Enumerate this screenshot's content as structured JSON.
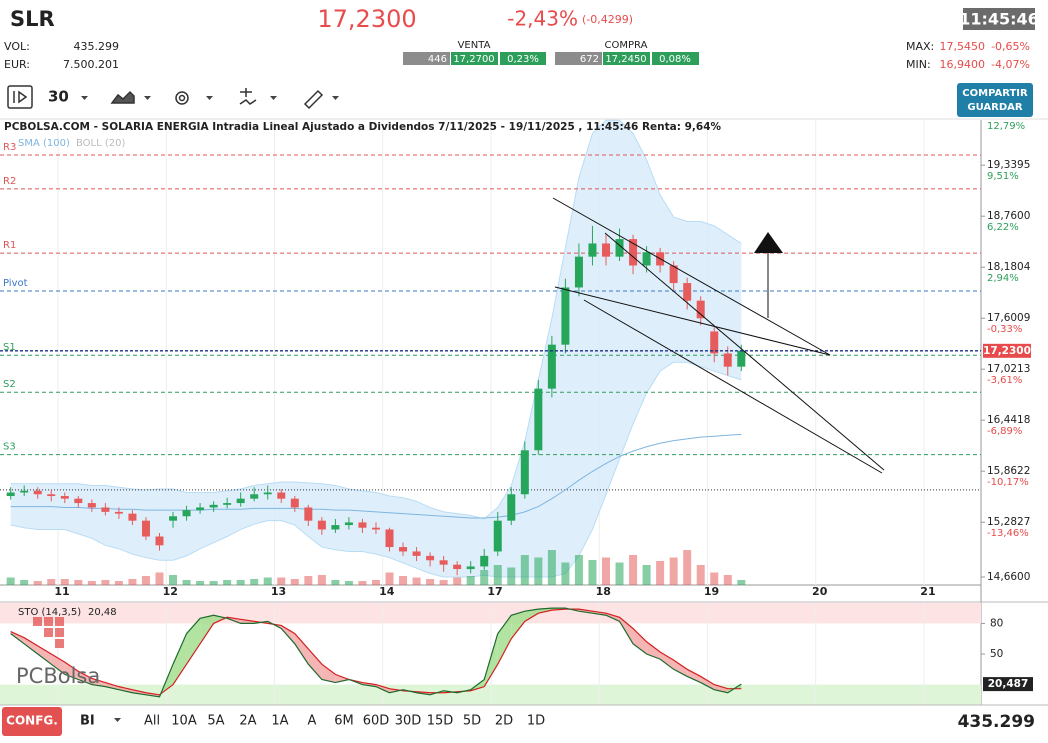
{
  "header": {
    "ticker": "SLR",
    "price": "17,2300",
    "change_pct": "-2,43%",
    "change_abs": "(-0,4299)",
    "time": "11:45:46",
    "vol_label": "VOL:",
    "vol": "435.299",
    "eur_label": "EUR:",
    "eur": "7.500.201",
    "venta": {
      "label": "VENTA",
      "qty": "446",
      "price": "17,2700",
      "pct": "0,23%"
    },
    "compra": {
      "label": "COMPRA",
      "qty": "672",
      "price": "17,2450",
      "pct": "0,08%"
    },
    "max_label": "MAX:",
    "max": "17,5450",
    "max_pct": "-0,65%",
    "min_label": "MIN:",
    "min": "16,9400",
    "min_pct": "-4,07%"
  },
  "toolbar": {
    "interval": "30",
    "share": "COMPARTIR",
    "save": "GUARDAR"
  },
  "chart_data": {
    "type": "candlestick",
    "title": "PCBOLSA.COM - SOLARIA ENERGIA Intradia Lineal Ajustado a Dividendos 7/11/2025 - 19/11/2025 , 11:45:46 Renta: 9,64%",
    "indicators": [
      "SMA (100)",
      "BOLL (20)"
    ],
    "colors": {
      "up": "#26a65b",
      "down": "#e65c5c",
      "sma": "#7fb5e0",
      "band": "#d6ebfa",
      "last": "#1f2f8a"
    },
    "x": [
      -0.4375,
      -0.3125,
      -0.1875,
      -0.0625,
      0.0625,
      0.1875,
      0.3125,
      0.4375,
      0.5625,
      0.6875,
      0.8125,
      0.9375,
      1.0625,
      1.1875,
      1.3125,
      1.4375,
      1.5625,
      1.6875,
      1.8125,
      1.9375,
      2.0625,
      2.1875,
      2.3125,
      2.4375,
      2.5625,
      2.6875,
      2.8125,
      2.9375,
      3.0625,
      3.1875,
      3.3125,
      3.4375,
      3.5625,
      3.6875,
      3.8125,
      3.9375,
      4.0625,
      4.1875,
      4.3125,
      4.4375,
      4.5625,
      4.6875,
      4.8125,
      4.9375,
      5.0625,
      5.1875,
      5.3125,
      5.4375,
      5.5625,
      5.6875,
      5.8125,
      5.9375,
      6.0625,
      6.1875,
      6.3125
    ],
    "ohlc": [
      [
        15.58,
        15.68,
        15.54,
        15.62
      ],
      [
        15.62,
        15.7,
        15.58,
        15.64
      ],
      [
        15.64,
        15.68,
        15.55,
        15.6
      ],
      [
        15.6,
        15.65,
        15.52,
        15.58
      ],
      [
        15.58,
        15.62,
        15.5,
        15.55
      ],
      [
        15.55,
        15.58,
        15.45,
        15.5
      ],
      [
        15.5,
        15.54,
        15.4,
        15.45
      ],
      [
        15.45,
        15.5,
        15.36,
        15.4
      ],
      [
        15.4,
        15.45,
        15.32,
        15.38
      ],
      [
        15.38,
        15.42,
        15.25,
        15.3
      ],
      [
        15.3,
        15.34,
        15.08,
        15.12
      ],
      [
        15.12,
        15.16,
        14.96,
        15.02
      ],
      [
        15.3,
        15.4,
        15.22,
        15.35
      ],
      [
        15.35,
        15.47,
        15.3,
        15.42
      ],
      [
        15.42,
        15.5,
        15.38,
        15.45
      ],
      [
        15.45,
        15.52,
        15.4,
        15.48
      ],
      [
        15.48,
        15.56,
        15.44,
        15.5
      ],
      [
        15.5,
        15.62,
        15.46,
        15.55
      ],
      [
        15.55,
        15.68,
        15.52,
        15.6
      ],
      [
        15.6,
        15.7,
        15.54,
        15.62
      ],
      [
        15.62,
        15.66,
        15.5,
        15.55
      ],
      [
        15.55,
        15.58,
        15.4,
        15.45
      ],
      [
        15.45,
        15.48,
        15.24,
        15.3
      ],
      [
        15.3,
        15.34,
        15.14,
        15.2
      ],
      [
        15.2,
        15.32,
        15.16,
        15.25
      ],
      [
        15.25,
        15.34,
        15.2,
        15.28
      ],
      [
        15.28,
        15.32,
        15.16,
        15.22
      ],
      [
        15.22,
        15.28,
        15.15,
        15.2
      ],
      [
        15.2,
        15.22,
        14.95,
        15.0
      ],
      [
        15.0,
        15.05,
        14.9,
        14.95
      ],
      [
        14.95,
        15.0,
        14.84,
        14.9
      ],
      [
        14.9,
        14.94,
        14.78,
        14.85
      ],
      [
        14.85,
        14.9,
        14.72,
        14.8
      ],
      [
        14.8,
        14.84,
        14.68,
        14.75
      ],
      [
        14.75,
        14.84,
        14.7,
        14.78
      ],
      [
        14.78,
        14.98,
        14.74,
        14.9
      ],
      [
        14.95,
        15.4,
        14.9,
        15.3
      ],
      [
        15.3,
        15.68,
        15.25,
        15.6
      ],
      [
        15.6,
        16.2,
        15.55,
        16.1
      ],
      [
        16.1,
        16.9,
        16.05,
        16.8
      ],
      [
        16.8,
        17.4,
        16.7,
        17.3
      ],
      [
        17.3,
        18.05,
        17.2,
        17.95
      ],
      [
        17.95,
        18.45,
        17.85,
        18.3
      ],
      [
        18.3,
        18.65,
        18.2,
        18.45
      ],
      [
        18.45,
        18.55,
        18.2,
        18.3
      ],
      [
        18.3,
        18.62,
        18.25,
        18.5
      ],
      [
        18.5,
        18.55,
        18.1,
        18.2
      ],
      [
        18.2,
        18.42,
        18.12,
        18.35
      ],
      [
        18.35,
        18.4,
        18.12,
        18.2
      ],
      [
        18.2,
        18.25,
        17.92,
        18.0
      ],
      [
        18.0,
        18.06,
        17.7,
        17.8
      ],
      [
        17.8,
        17.85,
        17.52,
        17.6
      ],
      [
        17.45,
        17.5,
        17.1,
        17.2
      ],
      [
        17.2,
        17.28,
        16.95,
        17.05
      ],
      [
        17.05,
        17.3,
        17.0,
        17.23
      ]
    ],
    "volume": [
      15,
      10,
      8,
      12,
      12,
      10,
      8,
      10,
      8,
      12,
      18,
      25,
      20,
      10,
      8,
      8,
      10,
      10,
      12,
      15,
      15,
      12,
      18,
      20,
      10,
      8,
      8,
      10,
      25,
      18,
      15,
      12,
      10,
      15,
      18,
      30,
      40,
      35,
      60,
      55,
      70,
      45,
      60,
      50,
      55,
      45,
      60,
      40,
      48,
      55,
      70,
      40,
      25,
      20,
      10
    ],
    "sma": [
      15.46,
      15.46,
      15.46,
      15.46,
      15.45,
      15.45,
      15.44,
      15.44,
      15.43,
      15.43,
      15.42,
      15.42,
      15.42,
      15.42,
      15.42,
      15.43,
      15.43,
      15.43,
      15.44,
      15.44,
      15.44,
      15.44,
      15.43,
      15.43,
      15.42,
      15.42,
      15.41,
      15.4,
      15.39,
      15.38,
      15.37,
      15.36,
      15.35,
      15.34,
      15.33,
      15.33,
      15.34,
      15.36,
      15.4,
      15.46,
      15.55,
      15.65,
      15.76,
      15.86,
      15.95,
      16.03,
      16.09,
      16.14,
      16.18,
      16.21,
      16.23,
      16.25,
      16.26,
      16.27,
      16.28
    ],
    "boll_upper": [
      15.72,
      15.72,
      15.72,
      15.72,
      15.72,
      15.72,
      15.7,
      15.7,
      15.68,
      15.66,
      15.65,
      15.66,
      15.66,
      15.62,
      15.62,
      15.62,
      15.64,
      15.66,
      15.7,
      15.72,
      15.74,
      15.74,
      15.73,
      15.72,
      15.7,
      15.66,
      15.64,
      15.62,
      15.58,
      15.56,
      15.52,
      15.45,
      15.4,
      15.38,
      15.36,
      15.32,
      15.45,
      15.7,
      16.2,
      16.9,
      17.6,
      18.4,
      19.2,
      19.7,
      19.85,
      19.85,
      19.7,
      19.4,
      19.0,
      18.75,
      18.7,
      18.7,
      18.65,
      18.55,
      18.45
    ],
    "boll_lower": [
      15.25,
      15.22,
      15.2,
      15.2,
      15.2,
      15.15,
      15.1,
      15.02,
      14.98,
      14.92,
      14.88,
      14.85,
      14.85,
      14.9,
      14.98,
      15.05,
      15.12,
      15.2,
      15.26,
      15.3,
      15.3,
      15.25,
      15.12,
      15.0,
      14.97,
      14.95,
      14.95,
      14.92,
      14.88,
      14.82,
      14.76,
      14.7,
      14.66,
      14.66,
      14.66,
      14.68,
      14.66,
      14.66,
      14.66,
      14.66,
      14.66,
      14.7,
      14.9,
      15.2,
      15.6,
      16.0,
      16.4,
      16.75,
      17.0,
      17.1,
      17.1,
      17.05,
      17.0,
      16.95,
      16.9
    ],
    "xlim": [
      -0.536,
      8.527
    ],
    "xticks": [
      {
        "value": 0,
        "label": "11"
      },
      {
        "value": 1,
        "label": "12"
      },
      {
        "value": 2,
        "label": "13"
      },
      {
        "value": 3,
        "label": "14"
      },
      {
        "value": 4,
        "label": "17"
      },
      {
        "value": 5,
        "label": "18"
      },
      {
        "value": 6,
        "label": "19"
      },
      {
        "value": 7,
        "label": "20"
      },
      {
        "value": 8,
        "label": "21"
      }
    ],
    "ylim": [
      14.569,
      19.853
    ],
    "yticks": [
      {
        "value": 19.3395,
        "label": "19,3395"
      },
      {
        "value": 18.76,
        "label": "18,7600"
      },
      {
        "value": 18.1804,
        "label": "18,1804"
      },
      {
        "value": 17.6009,
        "label": "17,6009"
      },
      {
        "value": 17.0213,
        "label": "17,0213"
      },
      {
        "value": 16.4418,
        "label": "16,4418"
      },
      {
        "value": 15.8622,
        "label": "15,8622"
      },
      {
        "value": 15.2827,
        "label": "15,2827"
      },
      {
        "value": 14.66,
        "label": "14,6600"
      }
    ],
    "percent_labels": [
      "12,79%",
      "9,51%",
      "6,22%",
      "2,94%",
      "-0,33%",
      "-3,61%",
      "-6,89%",
      "-10,17%",
      "-13,46%"
    ],
    "levels": [
      {
        "name": "R3",
        "value": 19.455,
        "color": "#e05555"
      },
      {
        "name": "R2",
        "value": 19.07,
        "color": "#e05555"
      },
      {
        "name": "R1",
        "value": 18.34,
        "color": "#e05555"
      },
      {
        "name": "Pivot",
        "value": 17.91,
        "color": "#3a78c9"
      },
      {
        "name": "S1",
        "value": 17.18,
        "color": "#2e9e5b"
      },
      {
        "name": "S2",
        "value": 16.76,
        "color": "#2e9e5b"
      },
      {
        "name": "S3",
        "value": 16.05,
        "color": "#2e9e5b"
      }
    ],
    "reference_line": 15.65,
    "last": {
      "value": 17.23,
      "label": "17,2300"
    },
    "stochastic": {
      "type": "line",
      "title": "STO (14,3,5)",
      "current": "20,48",
      "k": [
        70,
        60,
        50,
        40,
        30,
        25,
        20,
        18,
        15,
        12,
        10,
        8,
        40,
        70,
        85,
        88,
        85,
        80,
        80,
        82,
        75,
        60,
        40,
        25,
        22,
        25,
        20,
        18,
        12,
        15,
        12,
        10,
        14,
        12,
        15,
        25,
        70,
        88,
        92,
        94,
        95,
        95,
        92,
        90,
        88,
        82,
        60,
        50,
        45,
        35,
        28,
        22,
        15,
        12,
        20.48
      ],
      "d": [
        72,
        66,
        58,
        50,
        42,
        33,
        26,
        22,
        18,
        15,
        12,
        10,
        20,
        40,
        60,
        80,
        86,
        84,
        82,
        80,
        78,
        70,
        55,
        40,
        30,
        25,
        22,
        20,
        16,
        14,
        13,
        12,
        12,
        13,
        14,
        18,
        40,
        65,
        82,
        90,
        93,
        94,
        94,
        92,
        90,
        86,
        75,
        62,
        52,
        44,
        35,
        28,
        20,
        16,
        16
      ],
      "k_color": "#1d6b2e",
      "d_color": "#d42020",
      "ylim": [
        0,
        100
      ],
      "yticks": [
        80,
        50
      ],
      "zones": [
        20,
        80
      ],
      "last": {
        "value": 20.487,
        "label": "20,487"
      }
    },
    "logo": "PCBolsa"
  },
  "footer": {
    "config": "CONFG.",
    "mode": "BI",
    "ranges": [
      "All",
      "10A",
      "5A",
      "2A",
      "1A",
      "A",
      "6M",
      "60D",
      "30D",
      "15D",
      "5D",
      "2D",
      "1D"
    ],
    "volume": "435.299"
  }
}
